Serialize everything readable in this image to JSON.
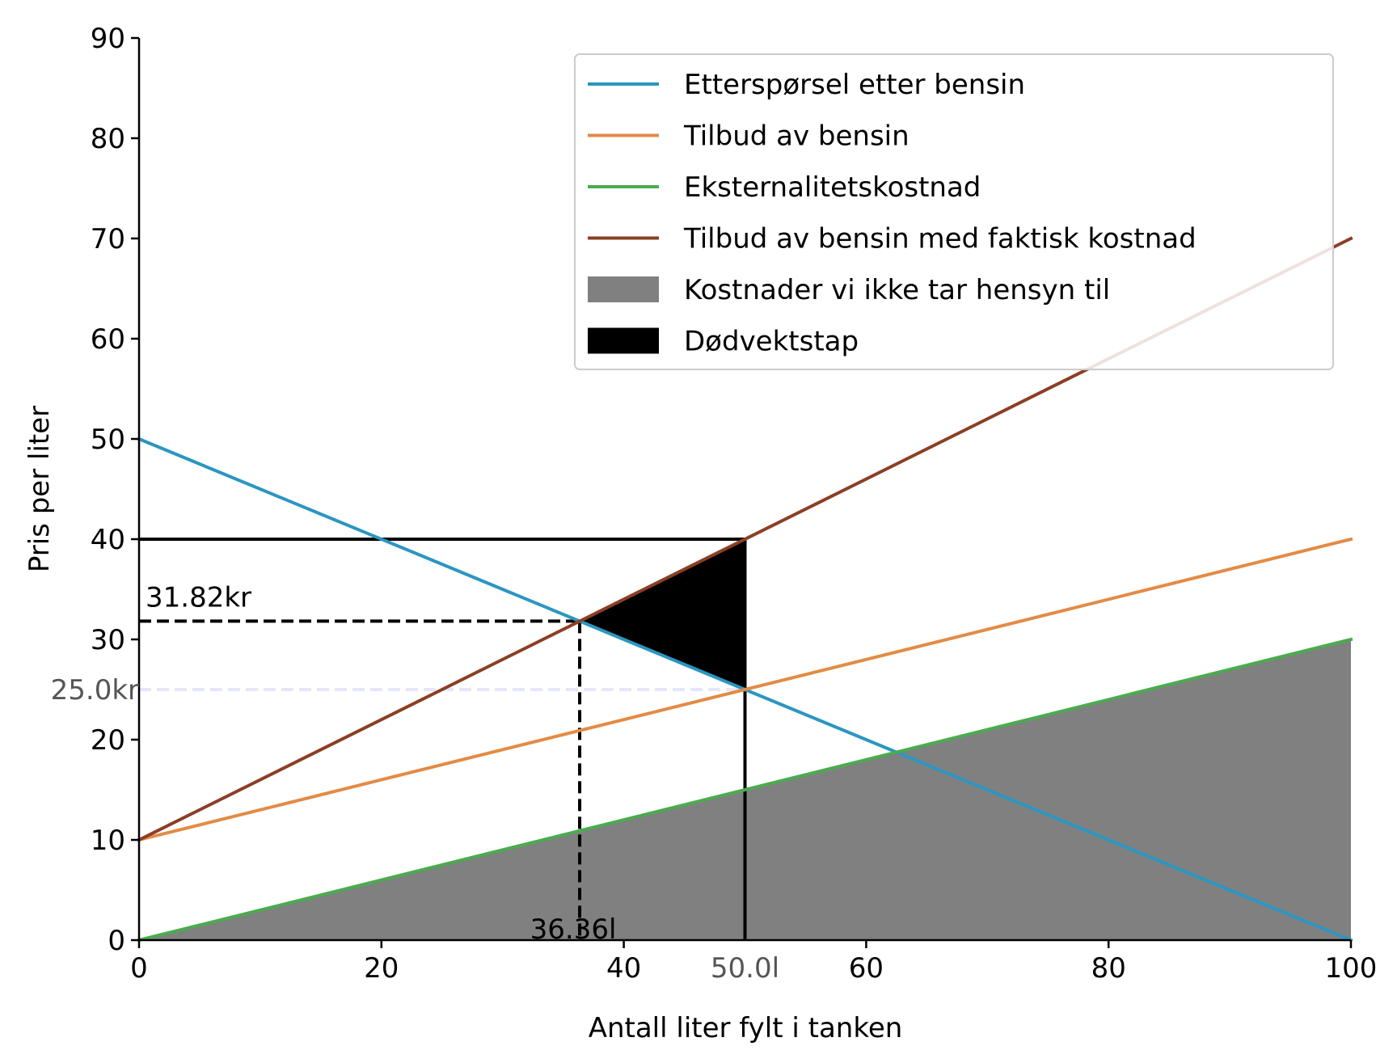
{
  "chart_data": {
    "type": "line",
    "xlabel": "Antall liter fylt i tanken",
    "ylabel": "Pris per liter",
    "xlim": [
      0,
      100
    ],
    "ylim": [
      0,
      90
    ],
    "xticks": [
      0,
      20,
      40,
      60,
      80,
      100
    ],
    "yticks": [
      0,
      10,
      20,
      30,
      40,
      50,
      60,
      70,
      80,
      90
    ],
    "grid": false,
    "legend_position": "top-right",
    "series": [
      {
        "name": "Etterspørsel etter bensin",
        "color": "#2b96c0",
        "x": [
          0,
          100
        ],
        "y": [
          50,
          0
        ]
      },
      {
        "name": "Tilbud av bensin",
        "color": "#e38b45",
        "x": [
          0,
          100
        ],
        "y": [
          10,
          40
        ]
      },
      {
        "name": "Eksternalitetskostnad",
        "color": "#4bab4f",
        "x": [
          0,
          100
        ],
        "y": [
          0,
          30
        ]
      },
      {
        "name": "Tilbud av bensin med faktisk kostnad",
        "color": "#8b3f25",
        "x": [
          0,
          100
        ],
        "y": [
          10,
          70
        ]
      }
    ],
    "areas": [
      {
        "name": "Kostnader vi ikke tar hensyn til",
        "color": "#808080",
        "points": [
          [
            0,
            0
          ],
          [
            100,
            30
          ],
          [
            100,
            0
          ]
        ]
      },
      {
        "name": "Dødvektstap",
        "color": "#000000",
        "points": [
          [
            36.36,
            31.82
          ],
          [
            50,
            40
          ],
          [
            50,
            25
          ]
        ]
      }
    ],
    "reference_lines": [
      {
        "style": "solid",
        "color": "#000000",
        "points": [
          [
            0,
            40
          ],
          [
            50,
            40
          ]
        ]
      },
      {
        "style": "solid",
        "color": "#000000",
        "points": [
          [
            50,
            40
          ],
          [
            50,
            0
          ]
        ]
      },
      {
        "style": "dashed",
        "color": "#000000",
        "points": [
          [
            0,
            31.82
          ],
          [
            36.36,
            31.82
          ]
        ]
      },
      {
        "style": "dashed",
        "color": "#000000",
        "points": [
          [
            36.36,
            31.82
          ],
          [
            36.36,
            0
          ]
        ]
      },
      {
        "style": "dashed",
        "color": "#e6e6fa",
        "points": [
          [
            0,
            25
          ],
          [
            50,
            25
          ]
        ]
      }
    ],
    "annotations": [
      {
        "text": "31.82kr",
        "x": 0,
        "y": 31.82,
        "color": "#000000"
      },
      {
        "text": "36.36l",
        "x": 36.36,
        "y": 0,
        "color": "#000000"
      },
      {
        "text": "25.0kr",
        "x": 0,
        "y": 25,
        "color": "#555555"
      },
      {
        "text": "50.0l",
        "x": 50,
        "y": 0,
        "color": "#555555"
      }
    ]
  }
}
